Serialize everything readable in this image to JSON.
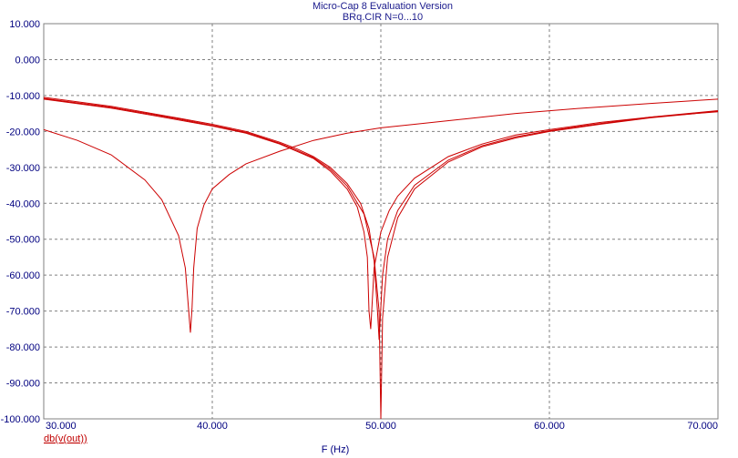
{
  "chart_data": {
    "type": "line",
    "title": "Micro-Cap 8 Evaluation Version",
    "subtitle": "BRq.CIR N=0...10",
    "xlabel": "F (Hz)",
    "ylabel": "",
    "legend": [
      "db(v(out))"
    ],
    "legend_placement": "bottom-left",
    "grid": true,
    "xlim": [
      30,
      70
    ],
    "ylim": [
      -100,
      10
    ],
    "x_ticks": [
      "30.000",
      "40.000",
      "50.000",
      "60.000",
      "70.000"
    ],
    "y_ticks": [
      "10.000",
      "0.000",
      "-10.000",
      "-20.000",
      "-30.000",
      "-40.000",
      "-50.000",
      "-60.000",
      "-70.000",
      "-80.000",
      "-90.000",
      "-100.000"
    ],
    "color": "#cc0000",
    "series": [
      {
        "x": [
          30,
          32,
          34,
          36,
          37,
          38,
          38.4,
          38.7,
          38.8,
          38.9,
          39.1,
          39.5,
          40,
          41,
          42,
          44,
          46,
          48,
          50,
          52,
          55,
          58,
          62,
          66,
          70
        ],
        "y": [
          -19.5,
          -22.5,
          -26.5,
          -33.5,
          -39,
          -49,
          -58,
          -76,
          -69,
          -58,
          -47,
          -40.5,
          -36,
          -32,
          -29,
          -25.5,
          -22.5,
          -20.5,
          -19,
          -18,
          -16.5,
          -15,
          -13.5,
          -12.2,
          -11
        ]
      },
      {
        "x": [
          30,
          34,
          38,
          40,
          42,
          44,
          45,
          46,
          47,
          48,
          48.6,
          49,
          49.2,
          49.3,
          49.4,
          49.6,
          50,
          50.5,
          51,
          52,
          54,
          56,
          58,
          60,
          63,
          66,
          70
        ],
        "y": [
          -11,
          -13.5,
          -16.8,
          -18.5,
          -20.5,
          -23.5,
          -25.5,
          -27.5,
          -31,
          -36,
          -41,
          -48,
          -55,
          -70,
          -75,
          -58,
          -48,
          -42,
          -38,
          -33,
          -27,
          -23.5,
          -21,
          -19.5,
          -17.5,
          -16,
          -14.5
        ]
      },
      {
        "x": [
          30,
          34,
          38,
          40,
          42,
          44,
          45,
          46,
          47,
          48,
          48.8,
          49.3,
          49.6,
          49.8,
          49.9,
          50.1,
          50.4,
          51,
          52,
          54,
          56,
          58,
          60,
          63,
          66,
          70
        ],
        "y": [
          -10.5,
          -13,
          -16.3,
          -18,
          -20,
          -23,
          -24.8,
          -27,
          -30,
          -34.5,
          -40,
          -47,
          -56,
          -70,
          -78,
          -60,
          -50,
          -42,
          -35,
          -28,
          -24,
          -21.5,
          -19.8,
          -17.8,
          -16,
          -14.2
        ]
      },
      {
        "x": [
          30,
          34,
          38,
          40,
          42,
          44,
          45,
          46,
          47,
          48,
          49,
          49.6,
          49.9,
          50,
          50.1,
          50.4,
          51,
          52,
          54,
          56,
          58,
          60,
          63,
          66,
          70
        ],
        "y": [
          -10.8,
          -13.3,
          -16.5,
          -18.3,
          -20.3,
          -23.3,
          -25.2,
          -27.3,
          -30.5,
          -35.2,
          -43,
          -55,
          -70,
          -100,
          -72,
          -55,
          -44,
          -36,
          -28.5,
          -24.3,
          -21.8,
          -20,
          -18,
          -16.2,
          -14.4
        ]
      }
    ]
  }
}
